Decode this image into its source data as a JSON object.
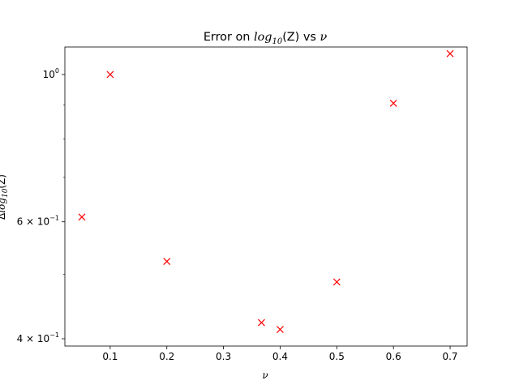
{
  "chart_data": {
    "type": "scatter",
    "title_prefix": "Error on ",
    "title_log": "log",
    "title_sub": "10",
    "title_suffix": "(Z) vs ",
    "title_nu": "ν",
    "xlabel": "ν",
    "ylabel_prefix": "Δ",
    "ylabel_log": "log",
    "ylabel_sub": "10",
    "ylabel_suffix": "(Z)",
    "xlim": [
      0.02,
      0.73
    ],
    "ylim": [
      0.39,
      1.1
    ],
    "yscale": "log",
    "grid": false,
    "marker": "x",
    "color": "#ff0000",
    "x_ticks": [
      "0.1",
      "0.2",
      "0.3",
      "0.4",
      "0.5",
      "0.6",
      "0.7"
    ],
    "x_tick_values": [
      0.1,
      0.2,
      0.3,
      0.4,
      0.5,
      0.6,
      0.7
    ],
    "y_major_ticks": [
      {
        "value": 0.4,
        "mantissa": "4",
        "base": "10",
        "exp": "−1"
      },
      {
        "value": 0.6,
        "mantissa": "6",
        "base": "10",
        "exp": "−1"
      },
      {
        "value": 1.0,
        "mantissa": "",
        "base": "10",
        "exp": "0"
      }
    ],
    "y_minor_ticks": [
      0.5,
      0.7,
      0.8,
      0.9
    ],
    "x": [
      0.05,
      0.1,
      0.2,
      0.367,
      0.4,
      0.5,
      0.6,
      0.7
    ],
    "y": [
      0.61,
      1.0,
      0.523,
      0.423,
      0.413,
      0.487,
      0.905,
      1.075
    ]
  }
}
